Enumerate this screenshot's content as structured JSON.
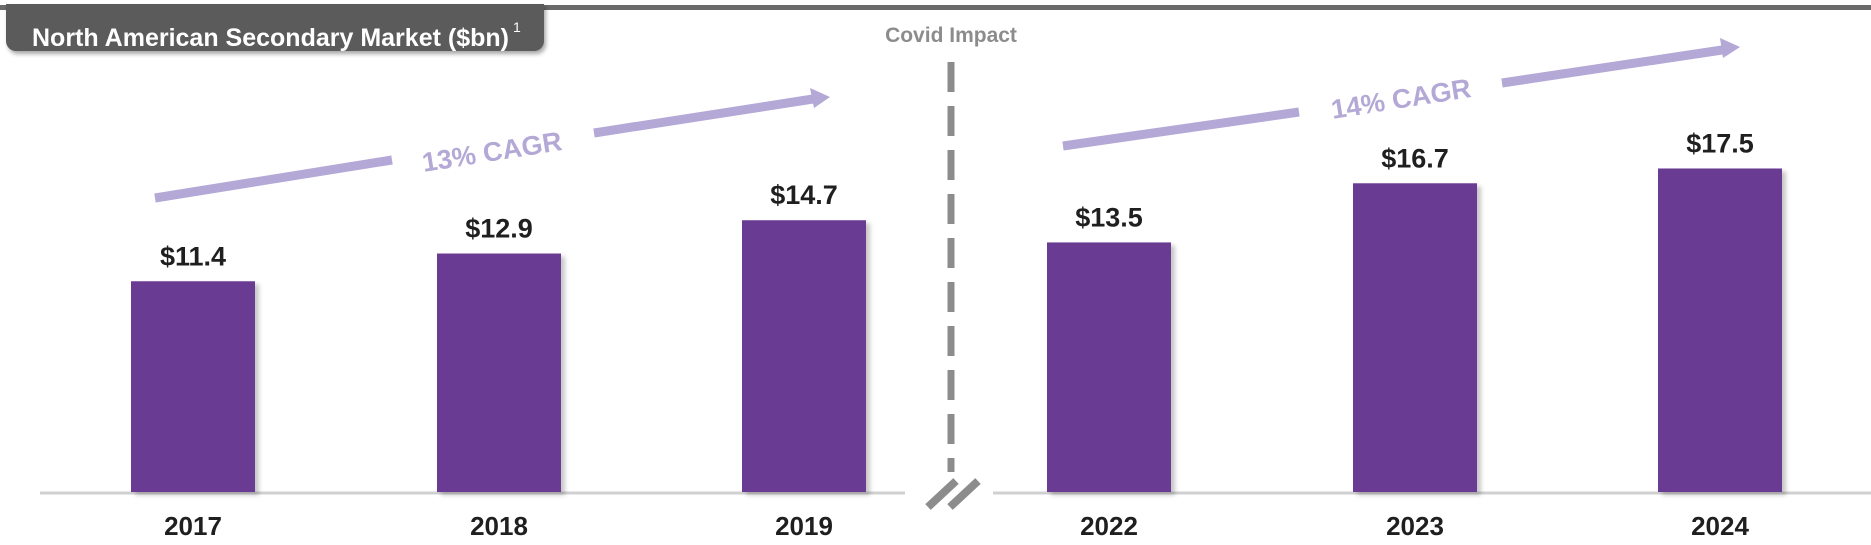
{
  "header": {
    "title": "North American Secondary Market ($bn)",
    "footnote": "1"
  },
  "chart_data": {
    "type": "bar",
    "title": "North American Secondary Market ($bn)",
    "xlabel": "",
    "ylabel": "",
    "ylim": [
      0,
      18.5
    ],
    "grid": false,
    "categories": [
      "2017",
      "2018",
      "2019",
      "2022",
      "2023",
      "2024"
    ],
    "values": [
      11.4,
      12.9,
      14.7,
      13.5,
      16.7,
      17.5
    ],
    "value_labels": [
      "$11.4",
      "$12.9",
      "$14.7",
      "$13.5",
      "$16.7",
      "$17.5"
    ],
    "series": [
      {
        "name": "North American Secondary Market ($bn)",
        "values": [
          11.4,
          12.9,
          14.7,
          13.5,
          16.7,
          17.5
        ]
      }
    ],
    "annotations": {
      "covid_label": "Covid Impact",
      "cagr_left": "13% CAGR",
      "cagr_right": "14% CAGR"
    },
    "colors": {
      "bar": "#6b3a93",
      "arrow": "#b3a8d6",
      "cagr_text": "#b3a8d6",
      "covid_line": "#8c8c8c",
      "axis": "#d0d0d0",
      "label": "#1f1f1f"
    }
  }
}
